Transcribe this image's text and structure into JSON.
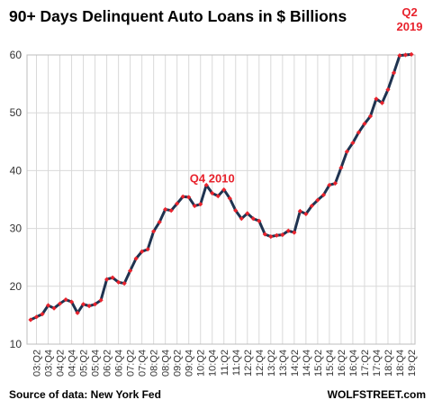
{
  "chart_data": {
    "type": "line",
    "title": "90+ Days Delinquent Auto Loans in $ Billions",
    "xlabel": "",
    "ylabel": "",
    "ylim": [
      10,
      60
    ],
    "yticks": [
      10,
      20,
      30,
      40,
      50,
      60
    ],
    "grid": true,
    "x": [
      "03:Q1",
      "03:Q2",
      "03:Q3",
      "03:Q4",
      "04:Q1",
      "04:Q2",
      "04:Q3",
      "04:Q4",
      "05:Q1",
      "05:Q2",
      "05:Q3",
      "05:Q4",
      "06:Q1",
      "06:Q2",
      "06:Q3",
      "06:Q4",
      "07:Q1",
      "07:Q2",
      "07:Q3",
      "07:Q4",
      "08:Q1",
      "08:Q2",
      "08:Q3",
      "08:Q4",
      "09:Q1",
      "09:Q2",
      "09:Q3",
      "09:Q4",
      "10:Q1",
      "10:Q2",
      "10:Q3",
      "10:Q4",
      "11:Q1",
      "11:Q2",
      "11:Q3",
      "11:Q4",
      "12:Q1",
      "12:Q2",
      "12:Q3",
      "12:Q4",
      "13:Q1",
      "13:Q2",
      "13:Q3",
      "13:Q4",
      "14:Q1",
      "14:Q2",
      "14:Q3",
      "14:Q4",
      "15:Q1",
      "15:Q2",
      "15:Q3",
      "15:Q4",
      "16:Q1",
      "16:Q2",
      "16:Q3",
      "16:Q4",
      "17:Q1",
      "17:Q2",
      "17:Q3",
      "17:Q4",
      "18:Q1",
      "18:Q2",
      "18:Q3",
      "18:Q4",
      "19:Q1",
      "19:Q2"
    ],
    "x_tick_labels": [
      "03:Q2",
      "03:Q4",
      "04:Q2",
      "04:Q4",
      "05:Q2",
      "05:Q4",
      "06:Q2",
      "06:Q4",
      "07:Q2",
      "07:Q4",
      "08:Q2",
      "08:Q4",
      "09:Q2",
      "09:Q4",
      "10:Q2",
      "10:Q4",
      "11:Q2",
      "11:Q4",
      "12:Q2",
      "12:Q4",
      "13:Q2",
      "13:Q4",
      "14:Q2",
      "14:Q4",
      "15:Q2",
      "15:Q4",
      "16:Q2",
      "16:Q4",
      "17:Q2",
      "17:Q4",
      "18:Q2",
      "18:Q4",
      "19:Q2"
    ],
    "series": [
      {
        "name": "",
        "values": [
          14.2,
          14.7,
          15.2,
          16.7,
          16.2,
          17.0,
          17.7,
          17.3,
          15.4,
          16.9,
          16.6,
          16.9,
          17.6,
          21.2,
          21.5,
          20.7,
          20.5,
          22.7,
          24.8,
          26.0,
          26.4,
          29.5,
          31.1,
          33.3,
          33.1,
          34.3,
          35.5,
          35.4,
          33.9,
          34.2,
          37.5,
          36.1,
          35.6,
          36.7,
          35.2,
          33.1,
          31.7,
          32.6,
          31.7,
          31.3,
          29.0,
          28.6,
          28.8,
          28.9,
          29.6,
          29.3,
          33.0,
          32.5,
          33.9,
          34.9,
          35.8,
          37.5,
          37.8,
          40.5,
          43.3,
          44.8,
          46.6,
          48.1,
          49.4,
          52.4,
          51.7,
          54.0,
          56.9,
          59.9,
          60.0,
          60.1
        ]
      }
    ],
    "annotations": [
      {
        "text": "Q4 2010",
        "x": "10:Q4"
      },
      {
        "text": "Q2 2019",
        "x": "19:Q2"
      }
    ],
    "colors": {
      "line": "#1f3350",
      "marker": "#e8232d",
      "annotation": "#e8232d",
      "grid": "#d9d9d9"
    }
  },
  "footer": {
    "source": "Source of data: New York Fed",
    "brand": "WOLFSTREET.com"
  }
}
